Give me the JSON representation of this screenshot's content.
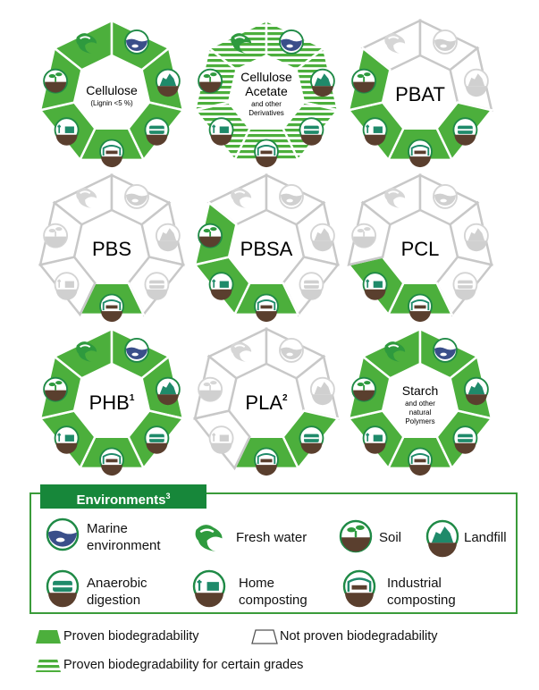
{
  "polymers": [
    {
      "id": "cellulose",
      "name": "Cellulose",
      "sub": "(Lignin <5 %)",
      "sup": "",
      "status": {
        "marine": "proven",
        "fresh": "proven",
        "soil": "proven",
        "landfill": "proven",
        "anaerobic": "proven",
        "home": "proven",
        "industrial": "proven"
      }
    },
    {
      "id": "cellulose-acetate",
      "name": "Cellulose Acetate",
      "sub": "and other Derivatives",
      "sup": "",
      "status": {
        "marine": "grades",
        "fresh": "grades",
        "soil": "grades",
        "landfill": "grades",
        "anaerobic": "grades",
        "home": "grades",
        "industrial": "grades"
      }
    },
    {
      "id": "pbat",
      "name": "PBAT",
      "sub": "",
      "sup": "",
      "status": {
        "marine": "not",
        "fresh": "not",
        "soil": "proven",
        "landfill": "not",
        "anaerobic": "proven",
        "home": "proven",
        "industrial": "proven"
      }
    },
    {
      "id": "pbs",
      "name": "PBS",
      "sub": "",
      "sup": "",
      "status": {
        "marine": "not",
        "fresh": "not",
        "soil": "not",
        "landfill": "not",
        "anaerobic": "not",
        "home": "not",
        "industrial": "proven"
      }
    },
    {
      "id": "pbsa",
      "name": "PBSA",
      "sub": "",
      "sup": "",
      "status": {
        "marine": "not",
        "fresh": "not",
        "soil": "proven",
        "landfill": "not",
        "anaerobic": "not",
        "home": "proven",
        "industrial": "proven"
      }
    },
    {
      "id": "pcl",
      "name": "PCL",
      "sub": "",
      "sup": "",
      "status": {
        "marine": "not",
        "fresh": "not",
        "soil": "not",
        "landfill": "not",
        "anaerobic": "not",
        "home": "proven",
        "industrial": "proven"
      }
    },
    {
      "id": "phb",
      "name": "PHB",
      "sub": "",
      "sup": "1",
      "status": {
        "marine": "proven",
        "fresh": "proven",
        "soil": "proven",
        "landfill": "proven",
        "anaerobic": "proven",
        "home": "proven",
        "industrial": "proven"
      }
    },
    {
      "id": "pla",
      "name": "PLA",
      "sub": "",
      "sup": "2",
      "status": {
        "marine": "not",
        "fresh": "not",
        "soil": "not",
        "landfill": "not",
        "anaerobic": "proven",
        "home": "not",
        "industrial": "proven"
      }
    },
    {
      "id": "starch",
      "name": "Starch",
      "sub": "and other natural Polymers",
      "sup": "",
      "status": {
        "marine": "proven",
        "fresh": "proven",
        "soil": "proven",
        "landfill": "proven",
        "anaerobic": "proven",
        "home": "proven",
        "industrial": "proven"
      }
    }
  ],
  "environments_title": "Environments",
  "environments_title_sup": "3",
  "environments": [
    {
      "key": "marine",
      "label": "Marine environment",
      "icon": "marine-icon"
    },
    {
      "key": "fresh",
      "label": "Fresh water",
      "icon": "fresh-water-icon"
    },
    {
      "key": "soil",
      "label": "Soil",
      "icon": "soil-icon"
    },
    {
      "key": "landfill",
      "label": "Landfill",
      "icon": "landfill-icon"
    },
    {
      "key": "anaerobic",
      "label": "Anaerobic digestion",
      "icon": "anaerobic-icon"
    },
    {
      "key": "home",
      "label": "Home composting",
      "icon": "home-composting-icon"
    },
    {
      "key": "industrial",
      "label": "Industrial composting",
      "icon": "industrial-composting-icon"
    }
  ],
  "key": {
    "proven": "Proven biodegradability",
    "not_proven": "Not proven biodegradability",
    "grades": "Proven biodegradability  for certain grades"
  },
  "colors": {
    "green": "#4caf3c",
    "dark_green": "#17873a",
    "outline": "#c8c8c8",
    "marine_blue": "#3a4f8a",
    "soil_brown": "#5a3f2e"
  }
}
